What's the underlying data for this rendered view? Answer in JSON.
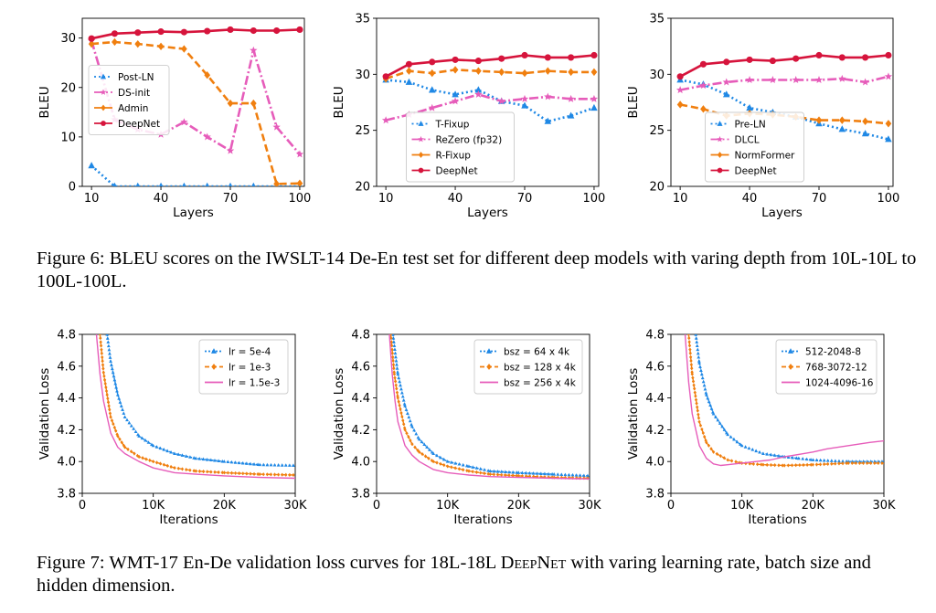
{
  "colors": {
    "blue": "#1f88e5",
    "pink": "#e65cba",
    "orange": "#f07f0f",
    "red": "#d6143c"
  },
  "figure6": {
    "caption": "Figure 6: BLEU scores on the IWSLT-14 De-En test set for different deep models with varing depth from 10L-10L to 100L-100L."
  },
  "figure7": {
    "caption_prefix": "Figure 7: WMT-17 En-De validation loss curves for 18L-18L ",
    "caption_model": "DeepNet",
    "caption_suffix": " with varing learning rate, batch size and hidden dimension."
  },
  "chart_data": [
    {
      "id": "f6a",
      "type": "line",
      "xlabel": "Layers",
      "ylabel": "BLEU",
      "xlim": [
        6,
        102
      ],
      "ylim": [
        0,
        34
      ],
      "xticks": [
        10,
        40,
        70,
        100
      ],
      "yticks": [
        0,
        10,
        20,
        30
      ],
      "legend": "center-left",
      "series": [
        {
          "name": "Post-LN",
          "color": "blue",
          "dash": "2,3",
          "marker": "tri",
          "x": [
            10,
            20,
            30,
            40,
            50,
            60,
            70,
            80,
            90,
            100
          ],
          "y": [
            4.2,
            0,
            0,
            0,
            0,
            0,
            0,
            0,
            0,
            0
          ]
        },
        {
          "name": "DS-init",
          "color": "pink",
          "dash": "10,3,2,3",
          "marker": "star",
          "x": [
            10,
            20,
            30,
            40,
            50,
            60,
            70,
            80,
            90,
            100
          ],
          "y": [
            29.5,
            13.5,
            11.5,
            10.5,
            13,
            10,
            7.2,
            27.5,
            12,
            6.5
          ]
        },
        {
          "name": "Admin",
          "color": "orange",
          "dash": "8,4",
          "marker": "diamond",
          "x": [
            10,
            20,
            30,
            40,
            50,
            60,
            70,
            80,
            90,
            100
          ],
          "y": [
            28.8,
            29.2,
            28.8,
            28.3,
            27.8,
            22.5,
            16.8,
            16.8,
            0.5,
            0.6
          ]
        },
        {
          "name": "DeepNet",
          "color": "red",
          "dash": "",
          "marker": "circle",
          "x": [
            10,
            20,
            30,
            40,
            50,
            60,
            70,
            80,
            90,
            100
          ],
          "y": [
            29.9,
            30.9,
            31.1,
            31.3,
            31.2,
            31.4,
            31.7,
            31.5,
            31.5,
            31.7
          ]
        }
      ]
    },
    {
      "id": "f6b",
      "type": "line",
      "xlabel": "Layers",
      "ylabel": "BLEU",
      "xlim": [
        6,
        102
      ],
      "ylim": [
        20,
        35
      ],
      "xticks": [
        10,
        40,
        70,
        100
      ],
      "yticks": [
        20,
        25,
        30,
        35
      ],
      "legend": "lower-center",
      "series": [
        {
          "name": "T-Fixup",
          "color": "blue",
          "dash": "2,3",
          "marker": "tri",
          "x": [
            10,
            20,
            30,
            40,
            50,
            60,
            70,
            80,
            90,
            100
          ],
          "y": [
            29.5,
            29.3,
            28.6,
            28.2,
            28.6,
            27.6,
            27.2,
            25.8,
            26.3,
            27.0
          ]
        },
        {
          "name": "ReZero (fp32)",
          "color": "pink",
          "dash": "10,3,2,3",
          "marker": "star",
          "x": [
            10,
            20,
            30,
            40,
            50,
            60,
            70,
            80,
            90,
            100
          ],
          "y": [
            25.9,
            26.4,
            27.0,
            27.6,
            28.2,
            27.6,
            27.8,
            28.0,
            27.8,
            27.8
          ]
        },
        {
          "name": "R-Fixup",
          "color": "orange",
          "dash": "8,4",
          "marker": "diamond",
          "x": [
            10,
            20,
            30,
            40,
            50,
            60,
            70,
            80,
            90,
            100
          ],
          "y": [
            29.6,
            30.3,
            30.1,
            30.4,
            30.3,
            30.2,
            30.1,
            30.3,
            30.2,
            30.2
          ]
        },
        {
          "name": "DeepNet",
          "color": "red",
          "dash": "",
          "marker": "circle",
          "x": [
            10,
            20,
            30,
            40,
            50,
            60,
            70,
            80,
            90,
            100
          ],
          "y": [
            29.8,
            30.9,
            31.1,
            31.3,
            31.2,
            31.4,
            31.7,
            31.5,
            31.5,
            31.7
          ]
        }
      ]
    },
    {
      "id": "f6c",
      "type": "line",
      "xlabel": "Layers",
      "ylabel": "BLEU",
      "xlim": [
        6,
        102
      ],
      "ylim": [
        20,
        35
      ],
      "xticks": [
        10,
        40,
        70,
        100
      ],
      "yticks": [
        20,
        25,
        30,
        35
      ],
      "legend": "lower-center",
      "series": [
        {
          "name": "Pre-LN",
          "color": "blue",
          "dash": "2,3",
          "marker": "tri",
          "x": [
            10,
            20,
            30,
            40,
            50,
            60,
            70,
            80,
            90,
            100
          ],
          "y": [
            29.5,
            29.1,
            28.2,
            27.0,
            26.6,
            26.2,
            25.6,
            25.1,
            24.7,
            24.2
          ]
        },
        {
          "name": "DLCL",
          "color": "pink",
          "dash": "10,3,2,3",
          "marker": "star",
          "x": [
            10,
            20,
            30,
            40,
            50,
            60,
            70,
            80,
            90,
            100
          ],
          "y": [
            28.6,
            29.0,
            29.3,
            29.5,
            29.5,
            29.5,
            29.5,
            29.6,
            29.3,
            29.8
          ]
        },
        {
          "name": "NormFormer",
          "color": "orange",
          "dash": "8,4",
          "marker": "diamond",
          "x": [
            10,
            20,
            30,
            40,
            50,
            60,
            70,
            80,
            90,
            100
          ],
          "y": [
            27.3,
            26.9,
            26.3,
            26.5,
            26.4,
            26.2,
            25.9,
            25.9,
            25.8,
            25.6
          ]
        },
        {
          "name": "DeepNet",
          "color": "red",
          "dash": "",
          "marker": "circle",
          "x": [
            10,
            20,
            30,
            40,
            50,
            60,
            70,
            80,
            90,
            100
          ],
          "y": [
            29.8,
            30.9,
            31.1,
            31.3,
            31.2,
            31.4,
            31.7,
            31.5,
            31.5,
            31.7
          ]
        }
      ]
    },
    {
      "id": "f7a",
      "type": "line",
      "xlabel": "Iterations",
      "ylabel": "Validation Loss",
      "xlim": [
        0,
        30000
      ],
      "ylim": [
        3.8,
        4.8
      ],
      "xticks": [
        0,
        10000,
        20000,
        30000
      ],
      "xticklabels": [
        "0",
        "10K",
        "20K",
        "30K"
      ],
      "yticks": [
        3.8,
        4.0,
        4.2,
        4.4,
        4.6,
        4.8
      ],
      "yticklabels": [
        "3.8",
        "4.0",
        "4.2",
        "4.4",
        "4.6",
        "4.8"
      ],
      "legend": "top-right",
      "series": [
        {
          "name": "lr = 5e-4",
          "color": "blue",
          "dash": "2,2",
          "marker": "tri",
          "x": [
            3500,
            4000,
            5000,
            6000,
            8000,
            10000,
            13000,
            16000,
            20000,
            25000,
            30000
          ],
          "y": [
            4.8,
            4.63,
            4.42,
            4.28,
            4.16,
            4.1,
            4.05,
            4.02,
            4.0,
            3.98,
            3.975
          ]
        },
        {
          "name": "lr = 1e-3",
          "color": "orange",
          "dash": "5,3",
          "marker": "diamond",
          "x": [
            2500,
            3000,
            4000,
            5000,
            6000,
            8000,
            10000,
            13000,
            16000,
            20000,
            25000,
            30000
          ],
          "y": [
            4.8,
            4.56,
            4.28,
            4.16,
            4.09,
            4.03,
            4.0,
            3.96,
            3.94,
            3.93,
            3.92,
            3.915
          ]
        },
        {
          "name": "lr = 1.5e-3",
          "color": "pink",
          "dash": "",
          "marker": "none",
          "x": [
            2000,
            2500,
            3000,
            4000,
            5000,
            6000,
            8000,
            10000,
            13000,
            16000,
            20000,
            25000,
            30000
          ],
          "y": [
            4.8,
            4.55,
            4.38,
            4.18,
            4.09,
            4.05,
            4.0,
            3.96,
            3.93,
            3.92,
            3.91,
            3.9,
            3.895
          ]
        }
      ]
    },
    {
      "id": "f7b",
      "type": "line",
      "xlabel": "Iterations",
      "ylabel": "Validation Loss",
      "xlim": [
        0,
        30000
      ],
      "ylim": [
        3.8,
        4.8
      ],
      "xticks": [
        0,
        10000,
        20000,
        30000
      ],
      "xticklabels": [
        "0",
        "10K",
        "20K",
        "30K"
      ],
      "yticks": [
        3.8,
        4.0,
        4.2,
        4.4,
        4.6,
        4.8
      ],
      "yticklabels": [
        "3.8",
        "4.0",
        "4.2",
        "4.4",
        "4.6",
        "4.8"
      ],
      "legend": "top-right",
      "series": [
        {
          "name": "bsz = 64 x 4k",
          "color": "blue",
          "dash": "2,2",
          "marker": "tri",
          "x": [
            2300,
            3000,
            4000,
            5000,
            6000,
            8000,
            10000,
            13000,
            16000,
            20000,
            25000,
            30000
          ],
          "y": [
            4.8,
            4.55,
            4.35,
            4.22,
            4.14,
            4.05,
            4.0,
            3.97,
            3.94,
            3.93,
            3.92,
            3.91
          ]
        },
        {
          "name": "bsz = 128 x 4k",
          "color": "orange",
          "dash": "5,3",
          "marker": "diamond",
          "x": [
            2000,
            2500,
            3000,
            4000,
            5000,
            6000,
            8000,
            10000,
            13000,
            16000,
            20000,
            25000,
            30000
          ],
          "y": [
            4.8,
            4.55,
            4.4,
            4.2,
            4.11,
            4.06,
            4.0,
            3.97,
            3.94,
            3.92,
            3.91,
            3.9,
            3.895
          ]
        },
        {
          "name": "bsz = 256 x 4k",
          "color": "pink",
          "dash": "",
          "marker": "none",
          "x": [
            1800,
            2200,
            2600,
            3000,
            4000,
            5000,
            6000,
            8000,
            10000,
            13000,
            16000,
            20000,
            25000,
            30000
          ],
          "y": [
            4.8,
            4.55,
            4.38,
            4.25,
            4.1,
            4.04,
            4.0,
            3.95,
            3.93,
            3.915,
            3.905,
            3.9,
            3.895,
            3.89
          ]
        }
      ]
    },
    {
      "id": "f7c",
      "type": "line",
      "xlabel": "Iterations",
      "ylabel": "Validation Loss",
      "xlim": [
        0,
        30000
      ],
      "ylim": [
        3.8,
        4.8
      ],
      "xticks": [
        0,
        10000,
        20000,
        30000
      ],
      "xticklabels": [
        "0",
        "10K",
        "20K",
        "30K"
      ],
      "yticks": [
        3.8,
        4.0,
        4.2,
        4.4,
        4.6,
        4.8
      ],
      "yticklabels": [
        "3.8",
        "4.0",
        "4.2",
        "4.4",
        "4.6",
        "4.8"
      ],
      "legend": "top-right",
      "series": [
        {
          "name": "512-2048-8",
          "color": "blue",
          "dash": "2,2",
          "marker": "tri",
          "x": [
            3500,
            4000,
            5000,
            6000,
            8000,
            10000,
            13000,
            16000,
            18000,
            20000,
            25000,
            30000
          ],
          "y": [
            4.8,
            4.62,
            4.42,
            4.3,
            4.17,
            4.1,
            4.05,
            4.03,
            4.02,
            4.01,
            4.0,
            4.0
          ]
        },
        {
          "name": "768-3072-12",
          "color": "orange",
          "dash": "5,3",
          "marker": "diamond",
          "x": [
            2500,
            3000,
            4000,
            5000,
            6000,
            8000,
            10000,
            13000,
            16000,
            20000,
            25000,
            30000
          ],
          "y": [
            4.8,
            4.55,
            4.25,
            4.12,
            4.06,
            4.01,
            3.99,
            3.98,
            3.975,
            3.98,
            3.99,
            3.99
          ]
        },
        {
          "name": "1024-4096-16",
          "color": "pink",
          "dash": "",
          "marker": "none",
          "x": [
            2000,
            2500,
            3000,
            4000,
            5000,
            6000,
            7000,
            8000,
            10000,
            12000,
            14000,
            16000,
            18000,
            20000,
            22000,
            25000,
            28000,
            30000
          ],
          "y": [
            4.8,
            4.5,
            4.3,
            4.1,
            4.02,
            3.985,
            3.975,
            3.98,
            3.99,
            4.0,
            4.01,
            4.03,
            4.045,
            4.06,
            4.08,
            4.1,
            4.12,
            4.13
          ]
        }
      ]
    }
  ]
}
